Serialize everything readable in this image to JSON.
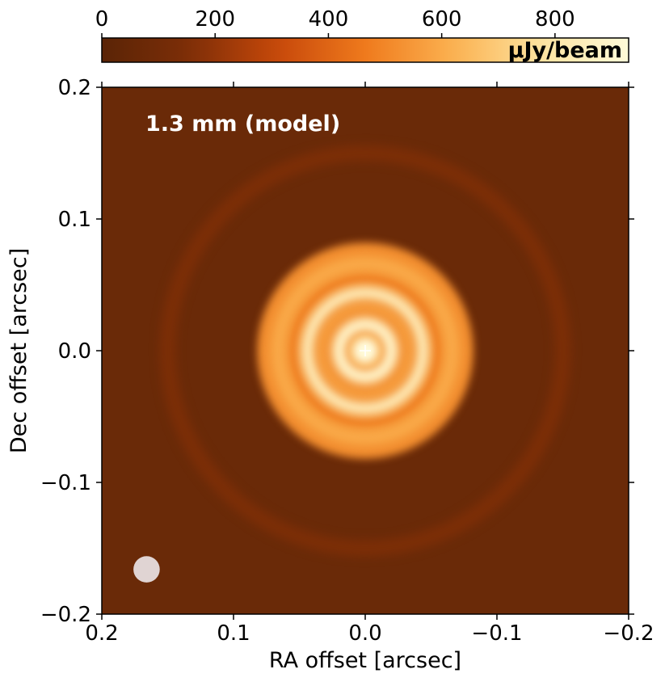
{
  "chart_data": {
    "type": "heatmap",
    "title": "1.3 mm (model)",
    "xlabel": "RA offset [arcsec]",
    "ylabel": "Dec offset [arcsec]",
    "xlim": [
      0.2,
      -0.2
    ],
    "ylim": [
      -0.2,
      0.2
    ],
    "x_ticks": [
      0.2,
      0.1,
      0.0,
      -0.1,
      -0.2
    ],
    "x_tick_labels": [
      "0.2",
      "0.1",
      "0.0",
      "−0.1",
      "−0.2"
    ],
    "y_ticks": [
      0.2,
      0.1,
      0.0,
      -0.1,
      -0.2
    ],
    "y_tick_labels": [
      "0.2",
      "0.1",
      "0.0",
      "−0.1",
      "−0.2"
    ],
    "colorbar": {
      "label": "μJy/beam",
      "range": [
        0,
        930
      ],
      "ticks": [
        0,
        200,
        400,
        600,
        800
      ],
      "tick_labels": [
        "0",
        "200",
        "400",
        "600",
        "800"
      ],
      "colormap": "orange-hot",
      "colors": [
        "#5a2406",
        "#7d2e07",
        "#c7480a",
        "#ef7a1d",
        "#fbb150",
        "#fde3a0",
        "#fffad8"
      ]
    },
    "background_level": 60,
    "star_marker": {
      "x": 0.0,
      "y": 0.0,
      "color": "#ffffff"
    },
    "beam": {
      "x": 0.166,
      "y": -0.166,
      "diameter": 0.02,
      "color": "#e0d4d3"
    },
    "rings": [
      {
        "r": 0.0,
        "width": 0.01,
        "level": 930
      },
      {
        "r": 0.02,
        "width": 0.01,
        "level": 900
      },
      {
        "r": 0.044,
        "width": 0.009,
        "level": 860
      },
      {
        "r": 0.066,
        "width": 0.011,
        "level": 600
      },
      {
        "r": 0.15,
        "width": 0.012,
        "level": 150
      }
    ],
    "gaps": [
      {
        "r": 0.01,
        "width": 0.004,
        "level": 620
      },
      {
        "r": 0.033,
        "width": 0.005,
        "level": 560
      },
      {
        "r": 0.055,
        "width": 0.004,
        "level": 470
      }
    ],
    "disk_envelope": {
      "r_edge": 0.082,
      "level_inside": 520
    }
  }
}
